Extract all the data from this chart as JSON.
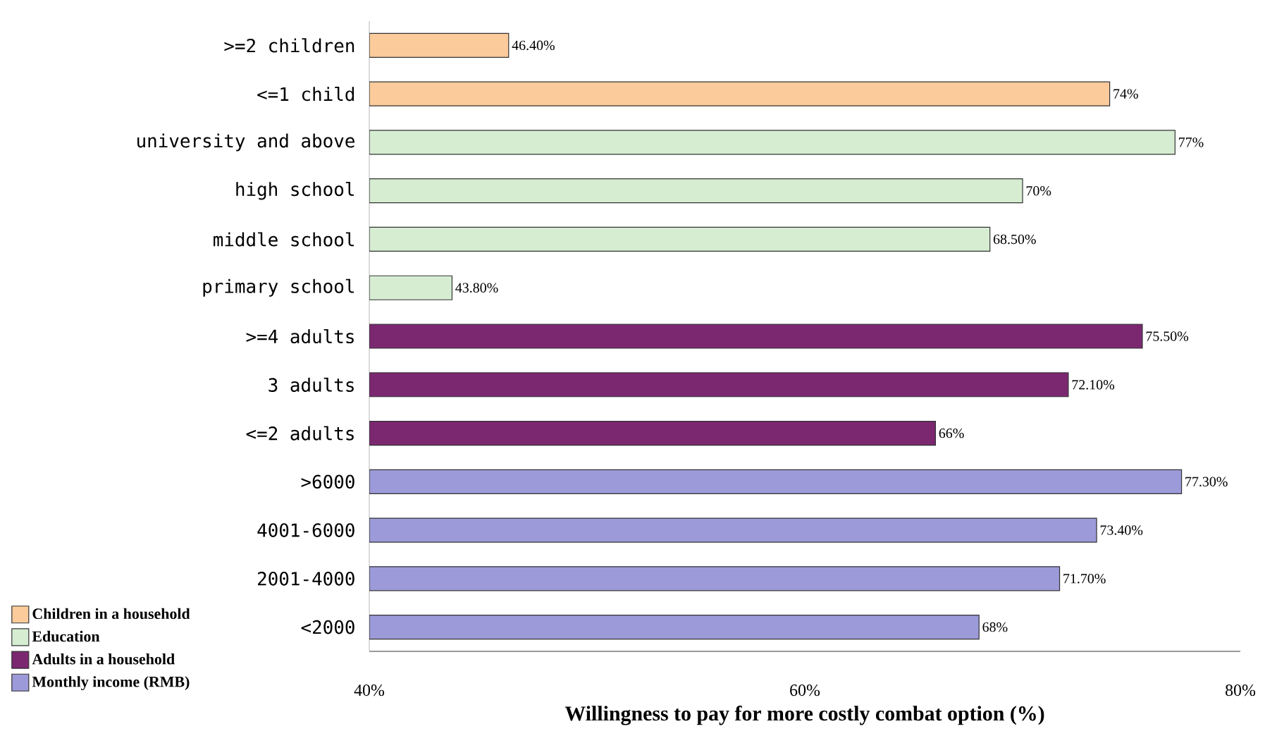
{
  "chart_data": {
    "type": "bar",
    "orientation": "horizontal",
    "xlabel": "Willingness to pay for more costly combat option (%)",
    "categories": [
      ">=2 children",
      "<=1 child",
      "university and above",
      "high school",
      "middle school",
      "primary school",
      ">=4 adults",
      "3 adults",
      "<=2 adults",
      ">6000",
      "4001-6000",
      "2001-4000",
      "<2000"
    ],
    "series": [
      {
        "name": "Children in a household",
        "color": "#fbcb9b",
        "values": [
          46.4,
          74,
          null,
          null,
          null,
          null,
          null,
          null,
          null,
          null,
          null,
          null,
          null
        ],
        "value_labels": [
          "46.40%",
          "74%",
          null,
          null,
          null,
          null,
          null,
          null,
          null,
          null,
          null,
          null,
          null
        ]
      },
      {
        "name": "Education",
        "color": "#d6edd2",
        "values": [
          null,
          null,
          77,
          70,
          68.5,
          43.8,
          null,
          null,
          null,
          null,
          null,
          null,
          null
        ],
        "value_labels": [
          null,
          null,
          "77%",
          "70%",
          "68.50%",
          "43.80%",
          null,
          null,
          null,
          null,
          null,
          null,
          null
        ]
      },
      {
        "name": "Adults in a household",
        "color": "#7b2870",
        "values": [
          null,
          null,
          null,
          null,
          null,
          null,
          75.5,
          72.1,
          66,
          null,
          null,
          null,
          null
        ],
        "value_labels": [
          null,
          null,
          null,
          null,
          null,
          null,
          "75.50%",
          "72.10%",
          "66%",
          null,
          null,
          null,
          null
        ]
      },
      {
        "name": "Monthly income (RMB)",
        "color": "#9c9ad8",
        "values": [
          null,
          null,
          null,
          null,
          null,
          null,
          null,
          null,
          null,
          77.3,
          73.4,
          71.7,
          68
        ],
        "value_labels": [
          null,
          null,
          null,
          null,
          null,
          null,
          null,
          null,
          null,
          "77.30%",
          "73.40%",
          "71.70%",
          "68%"
        ]
      }
    ],
    "xlim": [
      40,
      80
    ],
    "xticks": [
      {
        "value": 40,
        "label": "40%"
      },
      {
        "value": 60,
        "label": "60%"
      },
      {
        "value": 80,
        "label": "80%"
      }
    ],
    "grid": false,
    "legend": "bottom left"
  }
}
